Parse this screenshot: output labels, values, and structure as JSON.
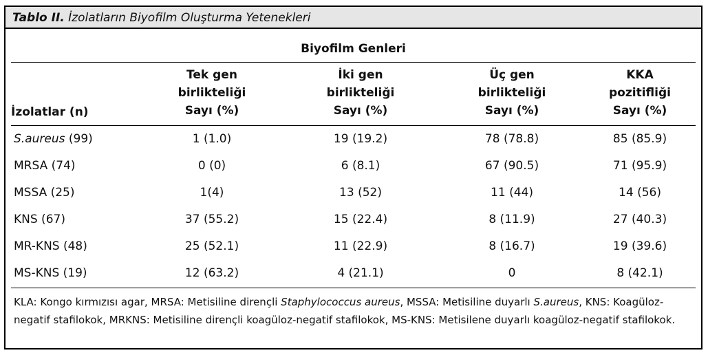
{
  "title": {
    "label": "Tablo II.",
    "text": "İzolatların Biyofilm Oluşturma Yetenekleri"
  },
  "group_header": "Biyofilm Genleri",
  "columns": [
    {
      "line1": "",
      "line2": "",
      "line3": "İzolatlar (n)"
    },
    {
      "line1": "Tek gen",
      "line2": "birlikteliği",
      "line3": "Sayı (%)"
    },
    {
      "line1": "İki gen",
      "line2": "birlikteliği",
      "line3": "Sayı (%)"
    },
    {
      "line1": "Üç gen",
      "line2": "birlikteliği",
      "line3": "Sayı (%)"
    },
    {
      "line1": "KKA",
      "line2": "pozitifliği",
      "line3": "Sayı (%)"
    }
  ],
  "rows": [
    {
      "name_italic": "S.aureus",
      "name": " (99)",
      "c1": "1 (1.0)",
      "c2": "19 (19.2)",
      "c3": "78 (78.8)",
      "c4": "85 (85.9)"
    },
    {
      "name_italic": "",
      "name": "MRSA (74)",
      "c1": "0 (0)",
      "c2": "6 (8.1)",
      "c3": "67 (90.5)",
      "c4": "71 (95.9)"
    },
    {
      "name_italic": "",
      "name": "MSSA (25)",
      "c1": "1(4)",
      "c2": "13 (52)",
      "c3": "11 (44)",
      "c4": "14 (56)"
    },
    {
      "name_italic": "",
      "name": "KNS (67)",
      "c1": "37 (55.2)",
      "c2": "15 (22.4)",
      "c3": "8 (11.9)",
      "c4": "27 (40.3)"
    },
    {
      "name_italic": "",
      "name": "MR-KNS (48)",
      "c1": "25 (52.1)",
      "c2": "11 (22.9)",
      "c3": "8 (16.7)",
      "c4": "19 (39.6)"
    },
    {
      "name_italic": "",
      "name": "MS-KNS (19)",
      "c1": "12 (63.2)",
      "c2": "4 (21.1)",
      "c3": "0",
      "c4": "8 (42.1)"
    }
  ],
  "footnote": {
    "p1": "KLA: Kongo kırmızısı agar, MRSA: Metisiline dirençli ",
    "i1": "Staphylococcus aureus",
    "p2": ", MSSA: Metisiline duyarlı ",
    "i2": "S.aureus",
    "p3": ", KNS: Koagüloz-negatif stafilokok, MRKNS: Metisiline dirençli koagüloz-negatif stafilokok, MS-KNS: Metisilene duyarlı koagüloz-negatif stafilokok."
  }
}
